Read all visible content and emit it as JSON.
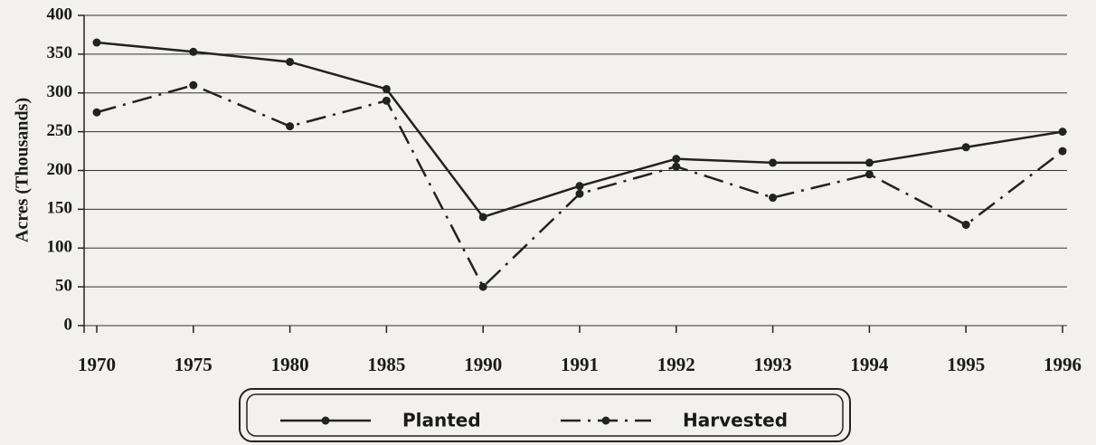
{
  "chart_data": {
    "type": "line",
    "y_label": "Acres (Thousands)",
    "categories": [
      "1970",
      "1975",
      "1980",
      "1985",
      "1990",
      "1991",
      "1992",
      "1993",
      "1994",
      "1995",
      "1996"
    ],
    "series": [
      {
        "name": "Planted",
        "color": "#222222",
        "dash": "solid",
        "values": [
          365,
          353,
          340,
          305,
          140,
          180,
          215,
          210,
          210,
          230,
          250
        ]
      },
      {
        "name": "Harvested",
        "color": "#222222",
        "dash": "dashdot",
        "values": [
          275,
          310,
          257,
          290,
          50,
          170,
          205,
          165,
          195,
          130,
          225
        ]
      }
    ],
    "ylim": [
      0,
      400
    ],
    "yticks": [
      0,
      50,
      100,
      150,
      200,
      250,
      300,
      350,
      400
    ],
    "grid": true,
    "legend": "bottom"
  }
}
